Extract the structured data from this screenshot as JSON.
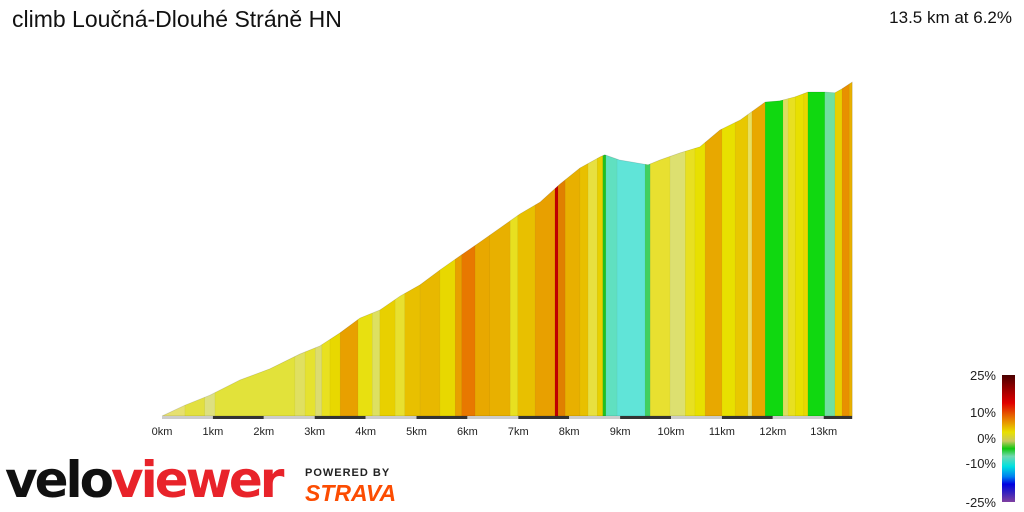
{
  "title": "climb Loučná-Dlouhé Stráně HN",
  "summary": "13.5 km at 6.2%",
  "chart_data": {
    "type": "area",
    "xlabel": "",
    "ylabel": "",
    "x_unit": "km",
    "xlim": [
      0,
      13.56
    ],
    "x_ticks": [
      "0km",
      "1km",
      "2km",
      "3km",
      "4km",
      "5km",
      "6km",
      "7km",
      "8km",
      "9km",
      "10km",
      "11km",
      "12km",
      "13km"
    ],
    "profile": [
      [
        0,
        0
      ],
      [
        0.45,
        27
      ],
      [
        0.94,
        52
      ],
      [
        1.53,
        90
      ],
      [
        2.12,
        118
      ],
      [
        2.71,
        155
      ],
      [
        3.1,
        175
      ],
      [
        3.5,
        208
      ],
      [
        3.89,
        245
      ],
      [
        4.28,
        265
      ],
      [
        4.68,
        300
      ],
      [
        5.07,
        328
      ],
      [
        5.46,
        365
      ],
      [
        5.85,
        400
      ],
      [
        6.25,
        435
      ],
      [
        6.64,
        470
      ],
      [
        7.03,
        505
      ],
      [
        7.43,
        535
      ],
      [
        7.82,
        580
      ],
      [
        8.21,
        620
      ],
      [
        8.61,
        648
      ],
      [
        8.7,
        653
      ],
      [
        8.99,
        640
      ],
      [
        9.55,
        628
      ],
      [
        9.78,
        640
      ],
      [
        10.18,
        658
      ],
      [
        10.57,
        673
      ],
      [
        10.96,
        715
      ],
      [
        11.36,
        740
      ],
      [
        11.85,
        785
      ],
      [
        12.14,
        788
      ],
      [
        12.44,
        798
      ],
      [
        12.69,
        810
      ],
      [
        13.02,
        810
      ],
      [
        13.22,
        808
      ],
      [
        13.36,
        818
      ],
      [
        13.56,
        835
      ]
    ],
    "segments": [
      [
        0,
        0.45,
        "#e6e070"
      ],
      [
        0.45,
        0.84,
        "#e2e040"
      ],
      [
        0.84,
        1.04,
        "#dde080"
      ],
      [
        1.04,
        2.61,
        "#e2e23a"
      ],
      [
        2.61,
        2.81,
        "#e0e060"
      ],
      [
        2.81,
        3.01,
        "#e5e230"
      ],
      [
        3.01,
        3.14,
        "#dcdc70"
      ],
      [
        3.14,
        3.3,
        "#e8e020"
      ],
      [
        3.3,
        3.5,
        "#e8d800"
      ],
      [
        3.5,
        3.85,
        "#e8a000"
      ],
      [
        3.85,
        4.13,
        "#e8e010"
      ],
      [
        4.13,
        4.28,
        "#dde060"
      ],
      [
        4.28,
        4.58,
        "#e8d000"
      ],
      [
        4.58,
        4.77,
        "#e8e030"
      ],
      [
        4.77,
        5.07,
        "#e8c000"
      ],
      [
        5.07,
        5.46,
        "#e8b800"
      ],
      [
        5.46,
        5.76,
        "#e8d800"
      ],
      [
        5.76,
        5.89,
        "#e8a000"
      ],
      [
        5.89,
        6.15,
        "#e87800"
      ],
      [
        6.15,
        6.44,
        "#e8a800"
      ],
      [
        6.44,
        6.84,
        "#e8b000"
      ],
      [
        6.84,
        6.99,
        "#e8e020"
      ],
      [
        6.99,
        7.33,
        "#e8c000"
      ],
      [
        7.33,
        7.72,
        "#e8a000"
      ],
      [
        7.72,
        7.78,
        "#c00000"
      ],
      [
        7.78,
        7.92,
        "#e08000"
      ],
      [
        7.92,
        8.21,
        "#e8b000"
      ],
      [
        8.21,
        8.37,
        "#e8c000"
      ],
      [
        8.37,
        8.55,
        "#e8e040"
      ],
      [
        8.55,
        8.66,
        "#e8d000"
      ],
      [
        8.66,
        8.72,
        "#20c020"
      ],
      [
        8.72,
        8.94,
        "#60e0c0"
      ],
      [
        8.94,
        9.49,
        "#60e4d8"
      ],
      [
        9.49,
        9.59,
        "#40d060"
      ],
      [
        9.59,
        9.98,
        "#e8e030"
      ],
      [
        9.98,
        10.28,
        "#dde070"
      ],
      [
        10.28,
        10.47,
        "#e8e020"
      ],
      [
        10.47,
        10.67,
        "#e8e000"
      ],
      [
        10.67,
        11.0,
        "#e8a800"
      ],
      [
        11.0,
        11.26,
        "#e8e000"
      ],
      [
        11.26,
        11.51,
        "#e8c800"
      ],
      [
        11.51,
        11.59,
        "#e8e060"
      ],
      [
        11.59,
        11.85,
        "#e8a800"
      ],
      [
        11.85,
        12.2,
        "#10d810"
      ],
      [
        12.2,
        12.3,
        "#dddd60"
      ],
      [
        12.3,
        12.44,
        "#e8e020"
      ],
      [
        12.44,
        12.61,
        "#e8e000"
      ],
      [
        12.61,
        12.69,
        "#e8d800"
      ],
      [
        12.69,
        13.02,
        "#10d810"
      ],
      [
        13.02,
        13.22,
        "#70e0a0"
      ],
      [
        13.22,
        13.36,
        "#e8d000"
      ],
      [
        13.36,
        13.5,
        "#e89000"
      ],
      [
        13.5,
        13.56,
        "#e8b000"
      ]
    ],
    "legend": {
      "labels": [
        "25%",
        "10%",
        "0%",
        "-10%",
        "-25%"
      ]
    }
  },
  "branding": {
    "logo_a": "velo",
    "logo_b": "viewer",
    "powered": "POWERED BY",
    "strava": "STRAVA"
  }
}
